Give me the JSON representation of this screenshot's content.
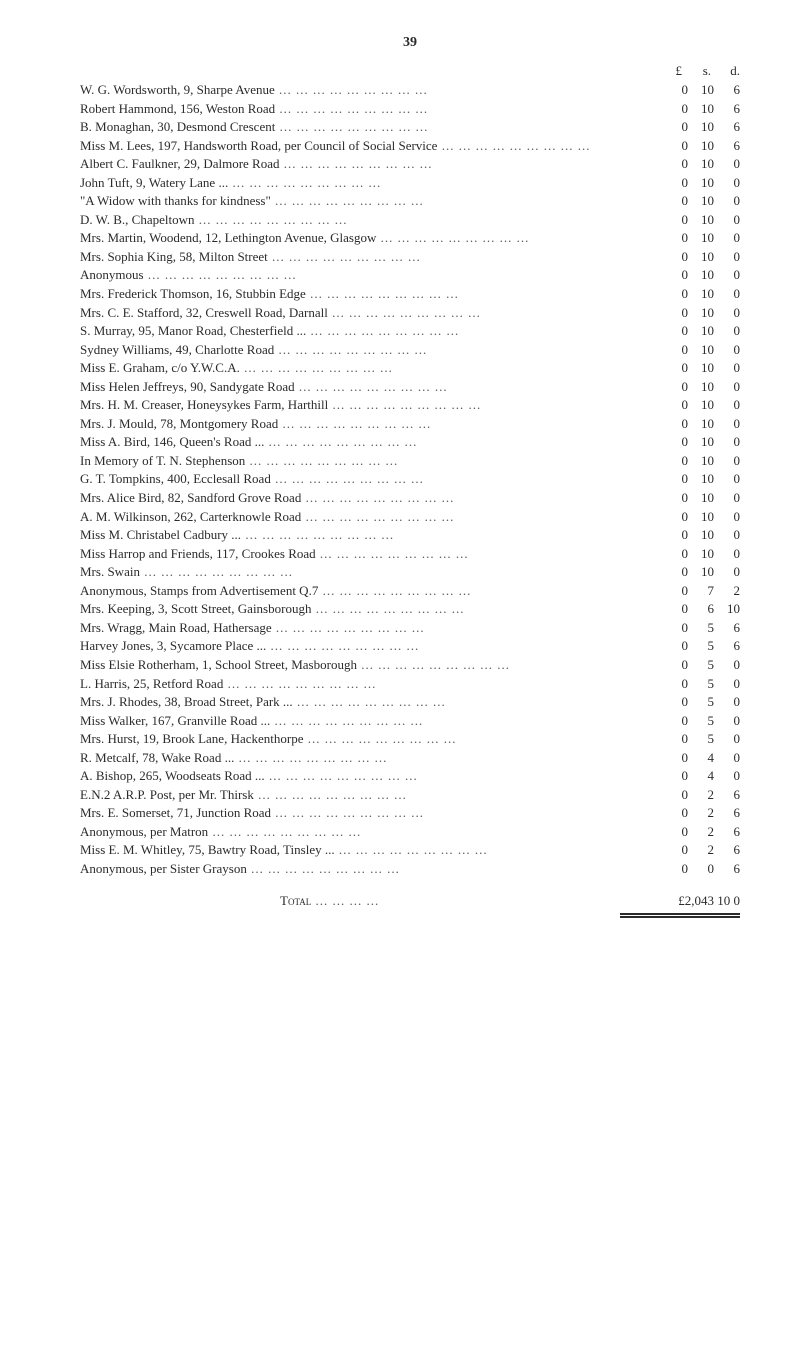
{
  "page_number": "39",
  "currency_header": {
    "pounds": "£",
    "shillings": "s.",
    "pence": "d."
  },
  "entries": [
    {
      "desc": "W. G. Wordsworth, 9, Sharpe Avenue",
      "l": "0",
      "s": "10",
      "d": "6"
    },
    {
      "desc": "Robert Hammond, 156, Weston Road",
      "l": "0",
      "s": "10",
      "d": "6"
    },
    {
      "desc": "B. Monaghan, 30, Desmond Crescent",
      "l": "0",
      "s": "10",
      "d": "6"
    },
    {
      "desc": "Miss M. Lees, 197, Handsworth Road, per Council of Social Service",
      "l": "0",
      "s": "10",
      "d": "6"
    },
    {
      "desc": "Albert C. Faulkner, 29, Dalmore Road",
      "l": "0",
      "s": "10",
      "d": "0"
    },
    {
      "desc": "John Tuft, 9, Watery Lane ...",
      "l": "0",
      "s": "10",
      "d": "0"
    },
    {
      "desc": "\"A Widow with thanks for kindness\"",
      "l": "0",
      "s": "10",
      "d": "0"
    },
    {
      "desc": "D. W. B., Chapeltown",
      "l": "0",
      "s": "10",
      "d": "0"
    },
    {
      "desc": "Mrs. Martin, Woodend, 12, Lethington Avenue, Glasgow",
      "l": "0",
      "s": "10",
      "d": "0"
    },
    {
      "desc": "Mrs. Sophia King, 58, Milton Street",
      "l": "0",
      "s": "10",
      "d": "0"
    },
    {
      "desc": "Anonymous",
      "l": "0",
      "s": "10",
      "d": "0"
    },
    {
      "desc": "Mrs. Frederick Thomson, 16, Stubbin Edge",
      "l": "0",
      "s": "10",
      "d": "0"
    },
    {
      "desc": "Mrs. C. E. Stafford, 32, Creswell Road, Darnall",
      "l": "0",
      "s": "10",
      "d": "0"
    },
    {
      "desc": "S. Murray, 95, Manor Road, Chesterfield ...",
      "l": "0",
      "s": "10",
      "d": "0"
    },
    {
      "desc": "Sydney Williams, 49, Charlotte Road",
      "l": "0",
      "s": "10",
      "d": "0"
    },
    {
      "desc": "Miss E. Graham, c/o Y.W.C.A.",
      "l": "0",
      "s": "10",
      "d": "0"
    },
    {
      "desc": "Miss Helen Jeffreys, 90, Sandygate Road",
      "l": "0",
      "s": "10",
      "d": "0"
    },
    {
      "desc": "Mrs. H. M. Creaser, Honeysykes Farm, Harthill",
      "l": "0",
      "s": "10",
      "d": "0"
    },
    {
      "desc": "Mrs. J. Mould, 78, Montgomery Road",
      "l": "0",
      "s": "10",
      "d": "0"
    },
    {
      "desc": "Miss A. Bird, 146, Queen's Road ...",
      "l": "0",
      "s": "10",
      "d": "0"
    },
    {
      "desc": "In Memory of T. N. Stephenson",
      "l": "0",
      "s": "10",
      "d": "0"
    },
    {
      "desc": "G. T. Tompkins, 400, Ecclesall Road",
      "l": "0",
      "s": "10",
      "d": "0"
    },
    {
      "desc": "Mrs. Alice Bird, 82, Sandford Grove Road",
      "l": "0",
      "s": "10",
      "d": "0"
    },
    {
      "desc": "A. M. Wilkinson, 262, Carterknowle Road",
      "l": "0",
      "s": "10",
      "d": "0"
    },
    {
      "desc": "Miss M. Christabel Cadbury ...",
      "l": "0",
      "s": "10",
      "d": "0"
    },
    {
      "desc": "Miss Harrop and Friends, 117, Crookes Road",
      "l": "0",
      "s": "10",
      "d": "0"
    },
    {
      "desc": "Mrs. Swain",
      "l": "0",
      "s": "10",
      "d": "0"
    },
    {
      "desc": "Anonymous, Stamps from Advertisement Q.7",
      "l": "0",
      "s": "7",
      "d": "2"
    },
    {
      "desc": "Mrs. Keeping, 3, Scott Street, Gainsborough",
      "l": "0",
      "s": "6",
      "d": "10"
    },
    {
      "desc": "Mrs. Wragg, Main Road, Hathersage",
      "l": "0",
      "s": "5",
      "d": "6"
    },
    {
      "desc": "Harvey Jones, 3, Sycamore Place ...",
      "l": "0",
      "s": "5",
      "d": "6"
    },
    {
      "desc": "Miss Elsie Rotherham, 1, School Street, Masborough",
      "l": "0",
      "s": "5",
      "d": "0"
    },
    {
      "desc": "L. Harris, 25, Retford Road",
      "l": "0",
      "s": "5",
      "d": "0"
    },
    {
      "desc": "Mrs. J. Rhodes, 38, Broad Street, Park ...",
      "l": "0",
      "s": "5",
      "d": "0"
    },
    {
      "desc": "Miss Walker, 167, Granville Road ...",
      "l": "0",
      "s": "5",
      "d": "0"
    },
    {
      "desc": "Mrs. Hurst, 19, Brook Lane, Hackenthorpe",
      "l": "0",
      "s": "5",
      "d": "0"
    },
    {
      "desc": "R. Metcalf, 78, Wake Road ...",
      "l": "0",
      "s": "4",
      "d": "0"
    },
    {
      "desc": "A. Bishop, 265, Woodseats Road ...",
      "l": "0",
      "s": "4",
      "d": "0"
    },
    {
      "desc": "E.N.2 A.R.P. Post, per Mr. Thirsk",
      "l": "0",
      "s": "2",
      "d": "6"
    },
    {
      "desc": "Mrs. E. Somerset, 71, Junction Road",
      "l": "0",
      "s": "2",
      "d": "6"
    },
    {
      "desc": "Anonymous, per Matron",
      "l": "0",
      "s": "2",
      "d": "6"
    },
    {
      "desc": "Miss E. M. Whitley, 75, Bawtry Road, Tinsley ...",
      "l": "0",
      "s": "2",
      "d": "6"
    },
    {
      "desc": "Anonymous, per Sister Grayson",
      "l": "0",
      "s": "0",
      "d": "6"
    }
  ],
  "total": {
    "label": "Total",
    "amount": "£2,043 10  0"
  }
}
